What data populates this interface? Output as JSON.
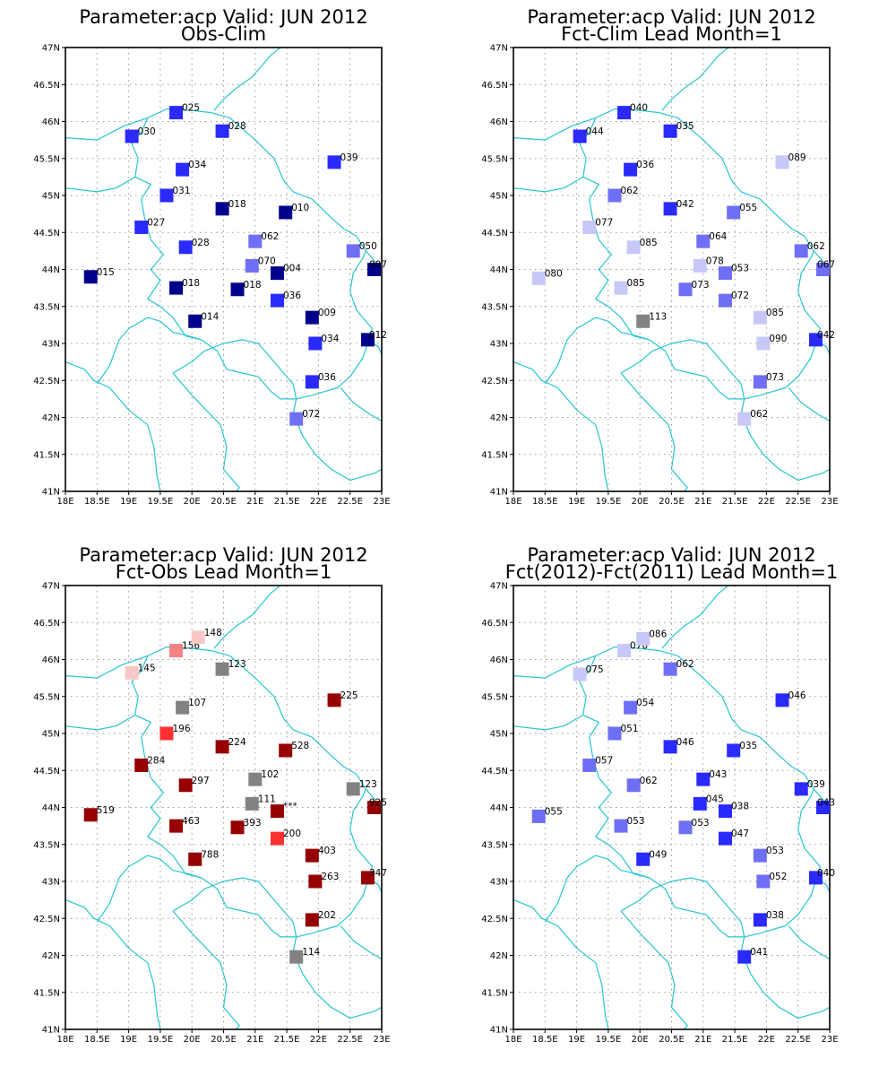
{
  "lon_ticks": [
    "18E",
    "18.5E",
    "19E",
    "19.5E",
    "20E",
    "20.5E",
    "21E",
    "21.5E",
    "22E",
    "22.5E",
    "23E"
  ],
  "lat_ticks": [
    "41N",
    "41.5N",
    "42N",
    "42.5N",
    "43N",
    "43.5N",
    "44N",
    "44.5N",
    "45N",
    "45.5N",
    "46N",
    "46.5N",
    "47N"
  ],
  "colors": {
    "grid": "#9a9a9a",
    "boundary": "#26c6cf",
    "blue_darkest": "#00008c",
    "blue_dark": "#2a2aff",
    "blue_medium": "#6f6ff6",
    "blue_light": "#c8c8f8",
    "grey": "#828282",
    "red_light": "#f8c8c8",
    "red_medium": "#f48282",
    "red": "#ff3030",
    "red_dark": "#960000"
  },
  "panels": [
    {
      "title_line1": "Parameter:acp Valid: JUN 2012",
      "title_line2": "Obs-Clim",
      "stations": [
        {
          "lon": 18.4,
          "lat": 43.9,
          "label": "015",
          "color": "#00008c"
        },
        {
          "lon": 19.05,
          "lat": 45.8,
          "label": "030",
          "color": "#2a2aff"
        },
        {
          "lon": 19.2,
          "lat": 44.57,
          "label": "027",
          "color": "#2a2aff"
        },
        {
          "lon": 19.6,
          "lat": 45.0,
          "label": "031",
          "color": "#2a2aff"
        },
        {
          "lon": 19.75,
          "lat": 46.12,
          "label": "025",
          "color": "#2a2aff"
        },
        {
          "lon": 19.75,
          "lat": 43.75,
          "label": "018",
          "color": "#00008c"
        },
        {
          "lon": 19.85,
          "lat": 45.35,
          "label": "034",
          "color": "#2a2aff"
        },
        {
          "lon": 19.9,
          "lat": 44.3,
          "label": "028",
          "color": "#2a2aff"
        },
        {
          "lon": 20.05,
          "lat": 43.3,
          "label": "014",
          "color": "#00008c"
        },
        {
          "lon": 20.48,
          "lat": 44.82,
          "label": "018",
          "color": "#00008c"
        },
        {
          "lon": 20.48,
          "lat": 45.87,
          "label": "028",
          "color": "#2a2aff"
        },
        {
          "lon": 20.72,
          "lat": 43.73,
          "label": "018",
          "color": "#00008c"
        },
        {
          "lon": 20.95,
          "lat": 44.05,
          "label": "070",
          "color": "#6f6ff6"
        },
        {
          "lon": 21.0,
          "lat": 44.38,
          "label": "062",
          "color": "#6f6ff6"
        },
        {
          "lon": 21.35,
          "lat": 43.58,
          "label": "036",
          "color": "#2a2aff"
        },
        {
          "lon": 21.35,
          "lat": 43.95,
          "label": "004",
          "color": "#00008c"
        },
        {
          "lon": 21.48,
          "lat": 44.77,
          "label": "010",
          "color": "#00008c"
        },
        {
          "lon": 21.65,
          "lat": 41.98,
          "label": "072",
          "color": "#6f6ff6"
        },
        {
          "lon": 21.9,
          "lat": 42.48,
          "label": "036",
          "color": "#2a2aff"
        },
        {
          "lon": 21.9,
          "lat": 43.35,
          "label": "009",
          "color": "#00008c"
        },
        {
          "lon": 21.95,
          "lat": 43.0,
          "label": "034",
          "color": "#2a2aff"
        },
        {
          "lon": 22.25,
          "lat": 45.45,
          "label": "039",
          "color": "#2a2aff"
        },
        {
          "lon": 22.55,
          "lat": 44.25,
          "label": "050",
          "color": "#6f6ff6"
        },
        {
          "lon": 22.78,
          "lat": 43.05,
          "label": "012",
          "color": "#00008c"
        },
        {
          "lon": 22.88,
          "lat": 44.0,
          "label": "007",
          "color": "#00008c"
        }
      ]
    },
    {
      "title_line1": "Parameter:acp Valid: JUN 2012",
      "title_line2": "Fct-Clim Lead Month=1",
      "stations": [
        {
          "lon": 18.4,
          "lat": 43.88,
          "label": "080",
          "color": "#c8c8f8"
        },
        {
          "lon": 19.05,
          "lat": 45.8,
          "label": "044",
          "color": "#2a2aff"
        },
        {
          "lon": 19.2,
          "lat": 44.57,
          "label": "077",
          "color": "#c8c8f8"
        },
        {
          "lon": 19.6,
          "lat": 45.0,
          "label": "062",
          "color": "#6f6ff6"
        },
        {
          "lon": 19.75,
          "lat": 46.12,
          "label": "040",
          "color": "#2a2aff"
        },
        {
          "lon": 19.7,
          "lat": 43.75,
          "label": "085",
          "color": "#c8c8f8"
        },
        {
          "lon": 19.85,
          "lat": 45.35,
          "label": "036",
          "color": "#2a2aff"
        },
        {
          "lon": 19.9,
          "lat": 44.3,
          "label": "085",
          "color": "#c8c8f8"
        },
        {
          "lon": 20.05,
          "lat": 43.3,
          "label": "113",
          "color": "#828282"
        },
        {
          "lon": 20.48,
          "lat": 44.82,
          "label": "042",
          "color": "#2a2aff"
        },
        {
          "lon": 20.48,
          "lat": 45.87,
          "label": "035",
          "color": "#2a2aff"
        },
        {
          "lon": 20.72,
          "lat": 43.73,
          "label": "073",
          "color": "#6f6ff6"
        },
        {
          "lon": 20.95,
          "lat": 44.05,
          "label": "078",
          "color": "#c8c8f8"
        },
        {
          "lon": 21.0,
          "lat": 44.38,
          "label": "064",
          "color": "#6f6ff6"
        },
        {
          "lon": 21.35,
          "lat": 43.58,
          "label": "072",
          "color": "#6f6ff6"
        },
        {
          "lon": 21.35,
          "lat": 43.95,
          "label": "053",
          "color": "#6f6ff6"
        },
        {
          "lon": 21.48,
          "lat": 44.77,
          "label": "055",
          "color": "#6f6ff6"
        },
        {
          "lon": 21.65,
          "lat": 41.98,
          "label": "062",
          "color": "#c8c8f8"
        },
        {
          "lon": 21.9,
          "lat": 42.48,
          "label": "073",
          "color": "#6f6ff6"
        },
        {
          "lon": 21.9,
          "lat": 43.35,
          "label": "085",
          "color": "#c8c8f8"
        },
        {
          "lon": 21.95,
          "lat": 43.0,
          "label": "090",
          "color": "#c8c8f8"
        },
        {
          "lon": 22.25,
          "lat": 45.45,
          "label": "089",
          "color": "#c8c8f8"
        },
        {
          "lon": 22.55,
          "lat": 44.25,
          "label": "062",
          "color": "#6f6ff6"
        },
        {
          "lon": 22.78,
          "lat": 43.05,
          "label": "042",
          "color": "#2a2aff"
        },
        {
          "lon": 22.92,
          "lat": 44.0,
          "label": "067",
          "color": "#6f6ff6"
        }
      ]
    },
    {
      "title_line1": "Parameter:acp Valid: JUN 2012",
      "title_line2": "Fct-Obs Lead Month=1",
      "stations": [
        {
          "lon": 18.4,
          "lat": 43.9,
          "label": "519",
          "color": "#960000"
        },
        {
          "lon": 19.05,
          "lat": 45.82,
          "label": "145",
          "color": "#f8c8c8"
        },
        {
          "lon": 19.2,
          "lat": 44.57,
          "label": "284",
          "color": "#960000"
        },
        {
          "lon": 19.6,
          "lat": 45.0,
          "label": "196",
          "color": "#ff3030"
        },
        {
          "lon": 19.75,
          "lat": 46.12,
          "label": "156",
          "color": "#f48282"
        },
        {
          "lon": 20.1,
          "lat": 46.3,
          "label": "148",
          "color": "#f8c8c8"
        },
        {
          "lon": 19.75,
          "lat": 43.75,
          "label": "463",
          "color": "#960000"
        },
        {
          "lon": 19.85,
          "lat": 45.35,
          "label": "107",
          "color": "#828282"
        },
        {
          "lon": 19.9,
          "lat": 44.3,
          "label": "297",
          "color": "#960000"
        },
        {
          "lon": 20.05,
          "lat": 43.3,
          "label": "788",
          "color": "#960000"
        },
        {
          "lon": 20.48,
          "lat": 44.82,
          "label": "224",
          "color": "#960000"
        },
        {
          "lon": 20.48,
          "lat": 45.87,
          "label": "123",
          "color": "#828282"
        },
        {
          "lon": 20.72,
          "lat": 43.73,
          "label": "393",
          "color": "#960000"
        },
        {
          "lon": 20.95,
          "lat": 44.05,
          "label": "111",
          "color": "#828282"
        },
        {
          "lon": 21.0,
          "lat": 44.38,
          "label": "102",
          "color": "#828282"
        },
        {
          "lon": 21.35,
          "lat": 43.58,
          "label": "200",
          "color": "#ff3030"
        },
        {
          "lon": 21.35,
          "lat": 43.95,
          "label": "***",
          "color": "#960000"
        },
        {
          "lon": 21.48,
          "lat": 44.77,
          "label": "528",
          "color": "#960000"
        },
        {
          "lon": 21.65,
          "lat": 41.98,
          "label": "114",
          "color": "#828282"
        },
        {
          "lon": 21.9,
          "lat": 42.48,
          "label": "202",
          "color": "#960000"
        },
        {
          "lon": 21.9,
          "lat": 43.35,
          "label": "403",
          "color": "#960000"
        },
        {
          "lon": 21.95,
          "lat": 43.0,
          "label": "263",
          "color": "#960000"
        },
        {
          "lon": 22.25,
          "lat": 45.45,
          "label": "225",
          "color": "#960000"
        },
        {
          "lon": 22.55,
          "lat": 44.25,
          "label": "123",
          "color": "#828282"
        },
        {
          "lon": 22.78,
          "lat": 43.05,
          "label": "347",
          "color": "#960000"
        },
        {
          "lon": 22.88,
          "lat": 44.0,
          "label": "925",
          "color": "#960000"
        }
      ]
    },
    {
      "title_line1": "Parameter:acp Valid: JUN 2012",
      "title_line2": "Fct(2012)-Fct(2011) Lead Month=1",
      "stations": [
        {
          "lon": 18.4,
          "lat": 43.88,
          "label": "055",
          "color": "#6f6ff6"
        },
        {
          "lon": 19.05,
          "lat": 45.8,
          "label": "075",
          "color": "#c8c8f8"
        },
        {
          "lon": 19.2,
          "lat": 44.57,
          "label": "057",
          "color": "#6f6ff6"
        },
        {
          "lon": 19.6,
          "lat": 45.0,
          "label": "051",
          "color": "#6f6ff6"
        },
        {
          "lon": 19.75,
          "lat": 46.12,
          "label": "076",
          "color": "#c8c8f8"
        },
        {
          "lon": 20.05,
          "lat": 46.28,
          "label": "086",
          "color": "#c8c8f8"
        },
        {
          "lon": 19.7,
          "lat": 43.75,
          "label": "053",
          "color": "#6f6ff6"
        },
        {
          "lon": 19.85,
          "lat": 45.35,
          "label": "054",
          "color": "#6f6ff6"
        },
        {
          "lon": 19.9,
          "lat": 44.3,
          "label": "062",
          "color": "#6f6ff6"
        },
        {
          "lon": 20.05,
          "lat": 43.3,
          "label": "049",
          "color": "#2a2aff"
        },
        {
          "lon": 20.48,
          "lat": 44.82,
          "label": "046",
          "color": "#2a2aff"
        },
        {
          "lon": 20.48,
          "lat": 45.87,
          "label": "062",
          "color": "#6f6ff6"
        },
        {
          "lon": 20.72,
          "lat": 43.73,
          "label": "053",
          "color": "#6f6ff6"
        },
        {
          "lon": 20.95,
          "lat": 44.05,
          "label": "045",
          "color": "#2a2aff"
        },
        {
          "lon": 21.0,
          "lat": 44.38,
          "label": "043",
          "color": "#2a2aff"
        },
        {
          "lon": 21.35,
          "lat": 43.58,
          "label": "047",
          "color": "#2a2aff"
        },
        {
          "lon": 21.35,
          "lat": 43.95,
          "label": "038",
          "color": "#2a2aff"
        },
        {
          "lon": 21.48,
          "lat": 44.77,
          "label": "035",
          "color": "#2a2aff"
        },
        {
          "lon": 21.65,
          "lat": 41.98,
          "label": "041",
          "color": "#2a2aff"
        },
        {
          "lon": 21.9,
          "lat": 42.48,
          "label": "038",
          "color": "#2a2aff"
        },
        {
          "lon": 21.9,
          "lat": 43.35,
          "label": "053",
          "color": "#6f6ff6"
        },
        {
          "lon": 21.95,
          "lat": 43.0,
          "label": "052",
          "color": "#6f6ff6"
        },
        {
          "lon": 22.25,
          "lat": 45.45,
          "label": "046",
          "color": "#2a2aff"
        },
        {
          "lon": 22.55,
          "lat": 44.25,
          "label": "039",
          "color": "#2a2aff"
        },
        {
          "lon": 22.78,
          "lat": 43.05,
          "label": "040",
          "color": "#2a2aff"
        },
        {
          "lon": 22.92,
          "lat": 44.0,
          "label": "043",
          "color": "#2a2aff"
        }
      ]
    }
  ]
}
